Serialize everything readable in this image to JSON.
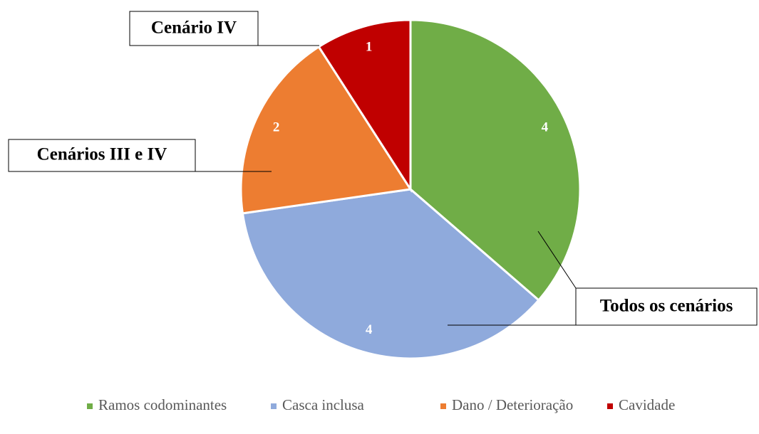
{
  "chart_data": {
    "type": "pie",
    "categories": [
      "Ramos codominantes",
      "Casca inclusa",
      "Dano / Deterioração",
      "Cavidade"
    ],
    "values": [
      4,
      4,
      2,
      1
    ],
    "colors": [
      "#70ad47",
      "#8faadc",
      "#ed7d31",
      "#c00000"
    ],
    "annotations": [
      "Cenário IV",
      "Cenários III e IV",
      "Todos os cenários"
    ],
    "legend": "bottom"
  }
}
